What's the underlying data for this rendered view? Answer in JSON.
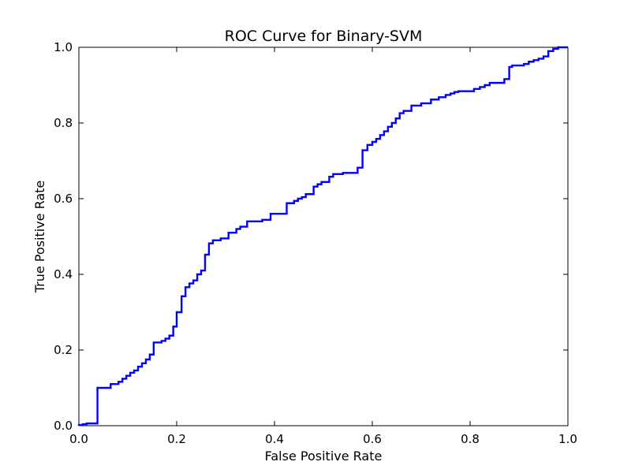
{
  "chart_data": {
    "type": "line",
    "title": "ROC Curve for Binary-SVM",
    "xlabel": "False Positive Rate",
    "ylabel": "True Positive Rate",
    "xlim": [
      0.0,
      1.0
    ],
    "ylim": [
      0.0,
      1.0
    ],
    "grid": false,
    "xticks": [
      "0.0",
      "0.2",
      "0.4",
      "0.6",
      "0.8",
      "1.0"
    ],
    "yticks": [
      "0.0",
      "0.2",
      "0.4",
      "0.6",
      "0.8",
      "1.0"
    ],
    "series": [
      {
        "color": "#0000ff",
        "x": [
          0.0,
          0.0,
          0.008,
          0.008,
          0.016,
          0.016,
          0.038,
          0.038,
          0.065,
          0.065,
          0.081,
          0.081,
          0.089,
          0.089,
          0.097,
          0.097,
          0.105,
          0.105,
          0.113,
          0.113,
          0.121,
          0.121,
          0.129,
          0.129,
          0.137,
          0.137,
          0.145,
          0.145,
          0.153,
          0.153,
          0.169,
          0.169,
          0.177,
          0.177,
          0.185,
          0.185,
          0.193,
          0.193,
          0.2,
          0.2,
          0.21,
          0.21,
          0.218,
          0.218,
          0.226,
          0.226,
          0.234,
          0.234,
          0.242,
          0.242,
          0.25,
          0.25,
          0.258,
          0.258,
          0.266,
          0.266,
          0.274,
          0.274,
          0.29,
          0.29,
          0.306,
          0.306,
          0.322,
          0.322,
          0.33,
          0.33,
          0.344,
          0.344,
          0.375,
          0.375,
          0.392,
          0.392,
          0.425,
          0.425,
          0.44,
          0.44,
          0.448,
          0.448,
          0.456,
          0.456,
          0.464,
          0.464,
          0.48,
          0.48,
          0.488,
          0.488,
          0.496,
          0.496,
          0.512,
          0.512,
          0.52,
          0.52,
          0.54,
          0.54,
          0.57,
          0.57,
          0.58,
          0.58,
          0.59,
          0.59,
          0.6,
          0.6,
          0.608,
          0.608,
          0.616,
          0.616,
          0.624,
          0.624,
          0.632,
          0.632,
          0.64,
          0.64,
          0.648,
          0.648,
          0.656,
          0.656,
          0.664,
          0.664,
          0.68,
          0.68,
          0.7,
          0.7,
          0.72,
          0.72,
          0.736,
          0.736,
          0.75,
          0.75,
          0.76,
          0.76,
          0.768,
          0.768,
          0.776,
          0.776,
          0.808,
          0.808,
          0.82,
          0.82,
          0.83,
          0.83,
          0.84,
          0.84,
          0.87,
          0.87,
          0.88,
          0.88,
          0.886,
          0.886,
          0.91,
          0.91,
          0.92,
          0.92,
          0.93,
          0.93,
          0.94,
          0.94,
          0.95,
          0.95,
          0.96,
          0.96,
          0.97,
          0.97,
          0.98,
          0.98,
          0.99,
          0.99,
          1.0,
          1.0
        ],
        "y": [
          0.0,
          0.002,
          0.002,
          0.004,
          0.004,
          0.006,
          0.006,
          0.1,
          0.1,
          0.11,
          0.11,
          0.116,
          0.116,
          0.124,
          0.124,
          0.132,
          0.132,
          0.14,
          0.14,
          0.146,
          0.146,
          0.156,
          0.156,
          0.165,
          0.165,
          0.175,
          0.175,
          0.188,
          0.188,
          0.22,
          0.22,
          0.224,
          0.224,
          0.23,
          0.23,
          0.238,
          0.238,
          0.262,
          0.262,
          0.3,
          0.3,
          0.342,
          0.342,
          0.366,
          0.366,
          0.376,
          0.376,
          0.384,
          0.384,
          0.4,
          0.4,
          0.41,
          0.41,
          0.452,
          0.452,
          0.482,
          0.482,
          0.49,
          0.49,
          0.495,
          0.495,
          0.51,
          0.51,
          0.52,
          0.52,
          0.526,
          0.526,
          0.54,
          0.54,
          0.544,
          0.544,
          0.56,
          0.56,
          0.588,
          0.588,
          0.594,
          0.594,
          0.6,
          0.6,
          0.604,
          0.604,
          0.612,
          0.612,
          0.632,
          0.632,
          0.638,
          0.638,
          0.644,
          0.644,
          0.658,
          0.658,
          0.665,
          0.665,
          0.668,
          0.668,
          0.682,
          0.682,
          0.728,
          0.728,
          0.742,
          0.742,
          0.75,
          0.75,
          0.758,
          0.758,
          0.768,
          0.768,
          0.778,
          0.778,
          0.79,
          0.79,
          0.8,
          0.8,
          0.812,
          0.812,
          0.826,
          0.826,
          0.832,
          0.832,
          0.846,
          0.846,
          0.852,
          0.852,
          0.862,
          0.862,
          0.868,
          0.868,
          0.874,
          0.874,
          0.878,
          0.878,
          0.882,
          0.882,
          0.884,
          0.884,
          0.89,
          0.89,
          0.895,
          0.895,
          0.9,
          0.9,
          0.906,
          0.906,
          0.916,
          0.916,
          0.948,
          0.948,
          0.952,
          0.952,
          0.956,
          0.956,
          0.962,
          0.962,
          0.966,
          0.966,
          0.97,
          0.97,
          0.976,
          0.976,
          0.99,
          0.99,
          0.996,
          0.996,
          1.0,
          1.0,
          1.0,
          1.0,
          1.0
        ]
      }
    ]
  }
}
